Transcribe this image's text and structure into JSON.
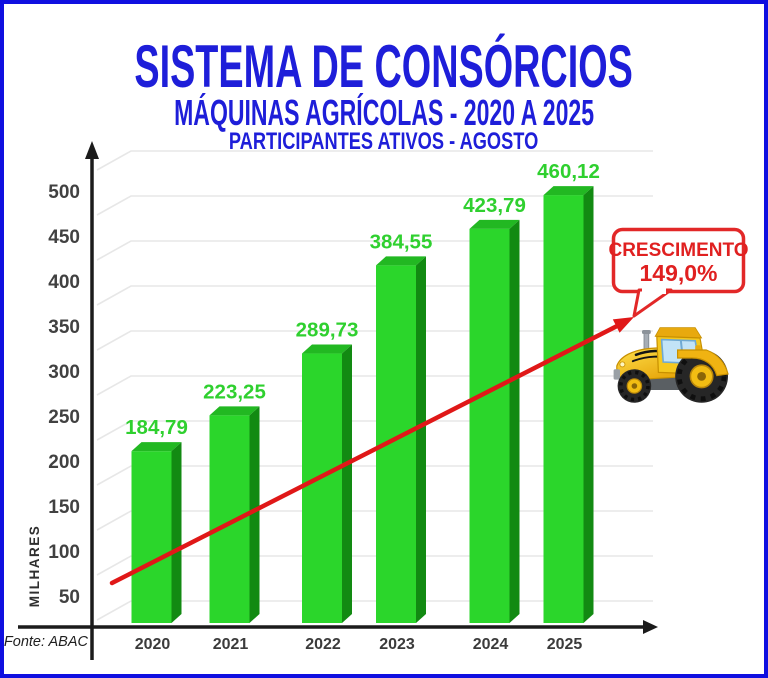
{
  "header": {
    "title": "SISTEMA DE CONSÓRCIOS",
    "subtitle": "MÁQUINAS AGRÍCOLAS - 2020 A 2025",
    "subtitle2": "PARTICIPANTES ATIVOS - AGOSTO",
    "color": "#1e1ed9"
  },
  "chart_data": {
    "type": "bar",
    "style": "3d-column",
    "categories": [
      "2020",
      "2021",
      "2022",
      "2023",
      "2024",
      "2025"
    ],
    "values": [
      184.79,
      223.25,
      289.73,
      384.55,
      423.79,
      460.12
    ],
    "value_labels": [
      "184,79",
      "223,25",
      "289,73",
      "384,55",
      "423,79",
      "460,12"
    ],
    "title": "SISTEMA DE CONSÓRCIOS",
    "subtitle": "MÁQUINAS AGRÍCOLAS - 2020 A 2025 — PARTICIPANTES ATIVOS - AGOSTO",
    "xlabel": "",
    "ylabel": "MILHARES",
    "ylim": [
      0,
      550
    ],
    "yticks": [
      50,
      100,
      150,
      200,
      250,
      300,
      350,
      400,
      450,
      500
    ],
    "grid": true,
    "grid_extra": [
      550
    ],
    "legend": false,
    "colors": {
      "bar_front": "#2bd62b",
      "bar_top": "#22b822",
      "bar_side": "#128a12",
      "value_label": "#2fd02f",
      "grid": "#e7e7e7",
      "axis": "#1b1b1b"
    }
  },
  "annotation": {
    "line1": "CRESCIMENTO",
    "line2": "149,0%",
    "color": "#e02020"
  },
  "trend_arrow": {
    "color": "#e01818",
    "direction": "up-right"
  },
  "footer": {
    "source": "Fonte: ABAC"
  }
}
